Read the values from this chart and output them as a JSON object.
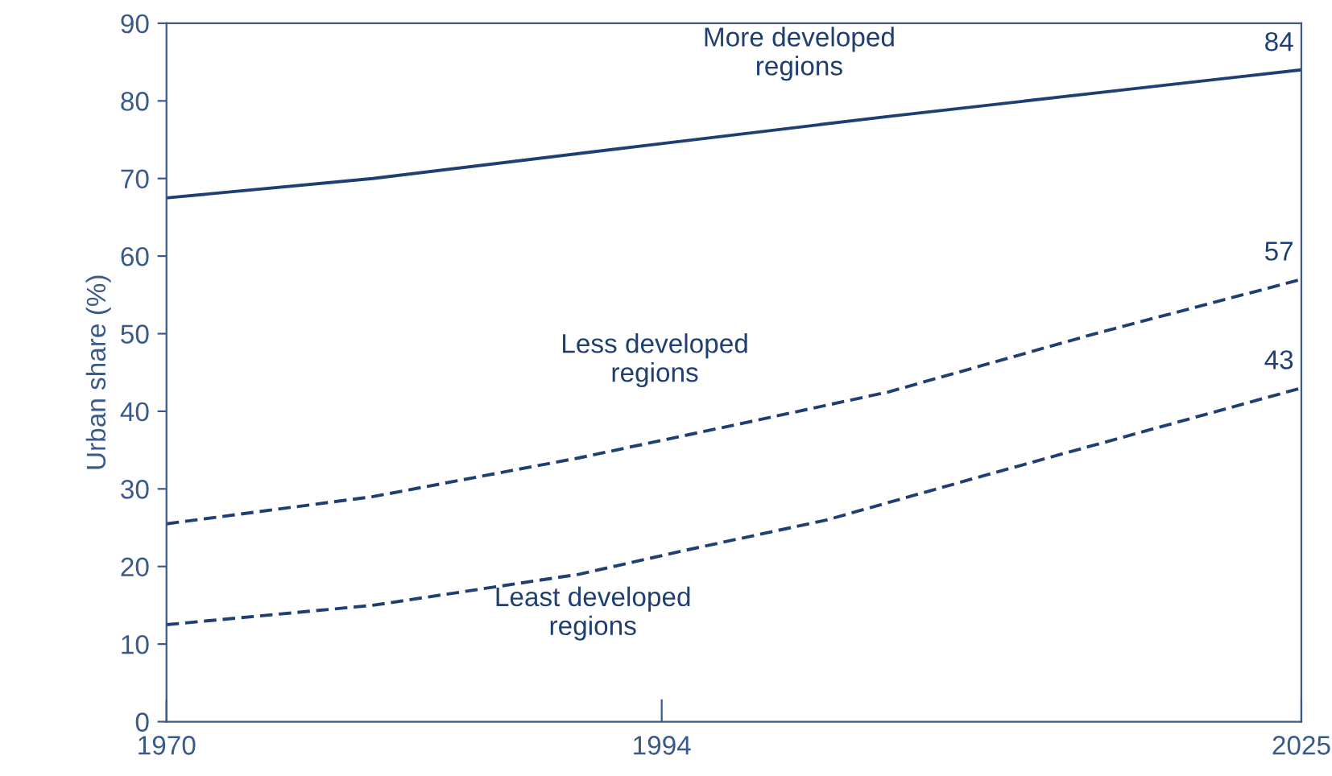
{
  "chart_data": {
    "type": "line",
    "ylabel": "Urban share (%)",
    "xlim": [
      1970,
      2025
    ],
    "xticks": [
      1970,
      1994,
      2025
    ],
    "ylim": [
      0,
      90
    ],
    "yticks": [
      0,
      10,
      20,
      30,
      40,
      50,
      60,
      70,
      80,
      90
    ],
    "grid": false,
    "legend": false,
    "marker": "none",
    "series": [
      {
        "name": "More developed\nregions",
        "color": "#1f3f73",
        "line_style": "solid",
        "x": [
          1970,
          1980,
          1994,
          2005,
          2015,
          2025
        ],
        "values": [
          67.5,
          70,
          74.5,
          78,
          81,
          84
        ],
        "value_labels": [
          null,
          null,
          null,
          null,
          null,
          "84"
        ]
      },
      {
        "name": "Less developed\nregions",
        "color": "#1f3f73",
        "line_style": "dashed",
        "x": [
          1970,
          1980,
          1990,
          1998,
          2005,
          2015,
          2025
        ],
        "values": [
          25.5,
          29,
          34,
          38.5,
          42.5,
          50,
          57
        ],
        "value_labels": [
          null,
          null,
          null,
          null,
          null,
          null,
          "57"
        ]
      },
      {
        "name": "Least developed\nregions",
        "color": "#1f3f73",
        "line_style": "dashed",
        "x": [
          1970,
          1980,
          1990,
          1995,
          2002,
          2010,
          2025
        ],
        "values": [
          12.5,
          15,
          19,
          22,
          26,
          32,
          43
        ],
        "value_labels": [
          null,
          null,
          null,
          null,
          null,
          null,
          "43"
        ]
      }
    ]
  }
}
